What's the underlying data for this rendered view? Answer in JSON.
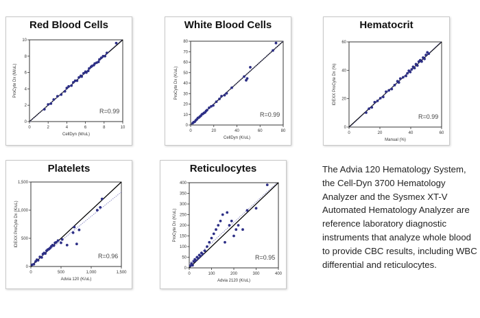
{
  "colors": {
    "point": "#2d2f86",
    "regression": "#7d7dbd",
    "identity": "#000000"
  },
  "chart_data": [
    {
      "type": "scatter",
      "title": "Red Blood Cells",
      "xlabel": "CellDyn (M/uL)",
      "ylabel": "ProCyte Dx (M/uL)",
      "xlim": [
        0,
        10
      ],
      "ylim": [
        0,
        10
      ],
      "xticks": [
        "0",
        "2",
        "4",
        "6",
        "8",
        "10"
      ],
      "yticks": [
        "0",
        "2",
        "4",
        "6",
        "8",
        "10"
      ],
      "annotation": "R=0.99",
      "points": [
        [
          1.6,
          1.5
        ],
        [
          2.0,
          2.1
        ],
        [
          2.3,
          2.2
        ],
        [
          2.6,
          2.7
        ],
        [
          3.0,
          3.1
        ],
        [
          3.4,
          3.3
        ],
        [
          3.8,
          3.7
        ],
        [
          4.0,
          4.1
        ],
        [
          4.2,
          4.3
        ],
        [
          4.5,
          4.4
        ],
        [
          4.7,
          4.8
        ],
        [
          4.9,
          5.0
        ],
        [
          5.1,
          5.0
        ],
        [
          5.3,
          5.4
        ],
        [
          5.5,
          5.6
        ],
        [
          5.6,
          5.5
        ],
        [
          5.8,
          5.9
        ],
        [
          6.0,
          6.1
        ],
        [
          6.1,
          6.0
        ],
        [
          6.3,
          6.2
        ],
        [
          6.4,
          6.5
        ],
        [
          6.6,
          6.7
        ],
        [
          6.7,
          6.8
        ],
        [
          6.9,
          6.9
        ],
        [
          7.0,
          7.1
        ],
        [
          7.2,
          7.2
        ],
        [
          7.4,
          7.3
        ],
        [
          7.5,
          7.6
        ],
        [
          7.7,
          7.8
        ],
        [
          7.9,
          8.0
        ],
        [
          8.1,
          8.0
        ],
        [
          8.3,
          8.4
        ],
        [
          9.3,
          9.6
        ]
      ]
    },
    {
      "type": "scatter",
      "title": "White Blood Cells",
      "xlabel": "CellDyn (K/uL)",
      "ylabel": "ProCyte Dx (K/uL)",
      "xlim": [
        0,
        90
      ],
      "ylim": [
        0,
        90
      ],
      "xticks": [
        "0",
        "20",
        "40",
        "60",
        "80"
      ],
      "yticks": [
        "0",
        "10",
        "20",
        "30",
        "40",
        "50",
        "60",
        "70",
        "80"
      ],
      "annotation": "R=0.99",
      "points": [
        [
          2,
          2
        ],
        [
          3,
          3
        ],
        [
          4,
          3.5
        ],
        [
          5,
          5
        ],
        [
          6,
          6
        ],
        [
          7,
          7.5
        ],
        [
          8,
          8
        ],
        [
          9,
          9
        ],
        [
          10,
          10
        ],
        [
          11,
          11.5
        ],
        [
          12,
          12
        ],
        [
          13,
          13
        ],
        [
          14,
          13.5
        ],
        [
          15,
          15
        ],
        [
          16,
          16
        ],
        [
          18,
          18.5
        ],
        [
          20,
          20
        ],
        [
          22,
          21
        ],
        [
          25,
          25
        ],
        [
          28,
          28
        ],
        [
          30,
          31
        ],
        [
          33,
          32
        ],
        [
          35,
          34
        ],
        [
          40,
          40
        ],
        [
          52,
          52
        ],
        [
          54,
          48
        ],
        [
          55,
          50
        ],
        [
          58,
          62
        ],
        [
          80,
          80
        ],
        [
          83,
          88
        ]
      ]
    },
    {
      "type": "scatter",
      "title": "Hematocrit",
      "xlabel": "Manual (%)",
      "ylabel": "IDEXX ProCyte Dx (%)",
      "xlim": [
        0,
        65
      ],
      "ylim": [
        0,
        65
      ],
      "xticks": [
        "0",
        "20",
        "40",
        "60"
      ],
      "yticks": [
        "0",
        "20",
        "40",
        "60"
      ],
      "annotation": "R=0.99",
      "points": [
        [
          12,
          11
        ],
        [
          14,
          14
        ],
        [
          16,
          15
        ],
        [
          18,
          19
        ],
        [
          20,
          20
        ],
        [
          22,
          22
        ],
        [
          24,
          23
        ],
        [
          26,
          27
        ],
        [
          28,
          28
        ],
        [
          30,
          29
        ],
        [
          32,
          32
        ],
        [
          34,
          35
        ],
        [
          35,
          34
        ],
        [
          36,
          37
        ],
        [
          38,
          38
        ],
        [
          40,
          39
        ],
        [
          41,
          41
        ],
        [
          42,
          43
        ],
        [
          43,
          42
        ],
        [
          44,
          44
        ],
        [
          45,
          46
        ],
        [
          46,
          45
        ],
        [
          47,
          48
        ],
        [
          48,
          47
        ],
        [
          49,
          50
        ],
        [
          50,
          51
        ],
        [
          51,
          50
        ],
        [
          52,
          53
        ],
        [
          53,
          52
        ],
        [
          54,
          55
        ],
        [
          55,
          57
        ],
        [
          56,
          56
        ]
      ]
    },
    {
      "type": "scatter",
      "title": "Platelets",
      "xlabel": "Advia 120 (K/uL)",
      "ylabel": "IDEXX ProCyte Dx (K/uL)",
      "xlim": [
        0,
        1500
      ],
      "ylim": [
        0,
        1500
      ],
      "xticks": [
        "0",
        "500",
        "1,000",
        "1,500"
      ],
      "yticks": [
        "0",
        "500",
        "1,000",
        "1,500"
      ],
      "annotation": "R=0.96",
      "points": [
        [
          20,
          30
        ],
        [
          50,
          40
        ],
        [
          80,
          90
        ],
        [
          100,
          120
        ],
        [
          120,
          110
        ],
        [
          150,
          170
        ],
        [
          180,
          160
        ],
        [
          200,
          220
        ],
        [
          220,
          240
        ],
        [
          240,
          230
        ],
        [
          260,
          280
        ],
        [
          280,
          300
        ],
        [
          300,
          310
        ],
        [
          320,
          330
        ],
        [
          340,
          360
        ],
        [
          360,
          380
        ],
        [
          380,
          370
        ],
        [
          400,
          420
        ],
        [
          420,
          430
        ],
        [
          450,
          460
        ],
        [
          500,
          420
        ],
        [
          520,
          480
        ],
        [
          600,
          380
        ],
        [
          700,
          600
        ],
        [
          720,
          700
        ],
        [
          760,
          400
        ],
        [
          800,
          650
        ],
        [
          1100,
          1000
        ],
        [
          1150,
          1050
        ],
        [
          1180,
          1200
        ]
      ]
    },
    {
      "type": "scatter",
      "title": "Reticulocytes",
      "xlabel": "Advia 2120 (K/uL)",
      "ylabel": "ProCyte Dx (K/uL)",
      "xlim": [
        0,
        400
      ],
      "ylim": [
        0,
        400
      ],
      "xticks": [
        "0",
        "100",
        "200",
        "300",
        "400"
      ],
      "yticks": [
        "0",
        "50",
        "100",
        "150",
        "200",
        "250",
        "300",
        "350",
        "400"
      ],
      "annotation": "R=0.95",
      "points": [
        [
          5,
          10
        ],
        [
          10,
          20
        ],
        [
          15,
          12
        ],
        [
          20,
          30
        ],
        [
          25,
          40
        ],
        [
          30,
          35
        ],
        [
          35,
          50
        ],
        [
          40,
          45
        ],
        [
          45,
          60
        ],
        [
          50,
          55
        ],
        [
          55,
          70
        ],
        [
          60,
          65
        ],
        [
          70,
          80
        ],
        [
          80,
          100
        ],
        [
          90,
          120
        ],
        [
          100,
          140
        ],
        [
          110,
          160
        ],
        [
          120,
          180
        ],
        [
          130,
          200
        ],
        [
          140,
          220
        ],
        [
          150,
          250
        ],
        [
          160,
          120
        ],
        [
          170,
          260
        ],
        [
          180,
          200
        ],
        [
          190,
          220
        ],
        [
          200,
          150
        ],
        [
          210,
          180
        ],
        [
          220,
          200
        ],
        [
          240,
          180
        ],
        [
          260,
          270
        ],
        [
          300,
          280
        ],
        [
          350,
          390
        ]
      ]
    }
  ],
  "description": "The Advia 120 Hematology System, the Cell-Dyn 3700 Hematology Analyzer and the Sysmex XT-V Automated Hematology Analyzer are reference laboratory diagnostic instruments that analyze whole blood to provide CBC results, including WBC differential and reticulocytes."
}
